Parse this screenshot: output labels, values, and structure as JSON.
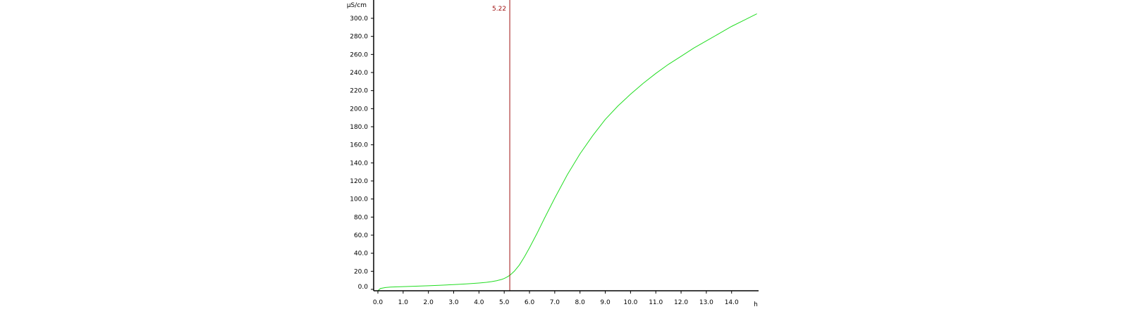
{
  "chart_data": {
    "type": "line",
    "title": "",
    "xlabel": "h",
    "ylabel": "µS/cm",
    "xlim": [
      0,
      15
    ],
    "ylim": [
      0,
      300
    ],
    "grid": false,
    "x_ticks": [
      0.0,
      1.0,
      2.0,
      3.0,
      4.0,
      5.0,
      6.0,
      7.0,
      8.0,
      9.0,
      10.0,
      11.0,
      12.0,
      13.0,
      14.0
    ],
    "x_tick_labels": [
      "0.0",
      "1.0",
      "2.0",
      "3.0",
      "4.0",
      "5.0",
      "6.0",
      "7.0",
      "8.0",
      "9.0",
      "10.0",
      "11.0",
      "12.0",
      "13.0",
      "14.0"
    ],
    "y_ticks": [
      0,
      20,
      40,
      60,
      80,
      100,
      120,
      140,
      160,
      180,
      200,
      220,
      240,
      260,
      280,
      300
    ],
    "y_tick_labels": [
      "0.0",
      "20.0",
      "40.0",
      "60.0",
      "80.0",
      "100.0",
      "120.0",
      "140.0",
      "160.0",
      "180.0",
      "200.0",
      "220.0",
      "240.0",
      "260.0",
      "280.0",
      "300.0"
    ],
    "series": [
      {
        "color": "#22dd22",
        "x": [
          0,
          0.1,
          0.3,
          0.5,
          1.0,
          1.5,
          2.0,
          2.5,
          3.0,
          3.5,
          4.0,
          4.3,
          4.5,
          4.7,
          4.9,
          5.0,
          5.1,
          5.22,
          5.4,
          5.6,
          5.8,
          6.0,
          6.3,
          6.6,
          7.0,
          7.5,
          8.0,
          8.5,
          9.0,
          9.5,
          10.0,
          10.5,
          11.0,
          11.5,
          12.0,
          12.5,
          13.0,
          13.5,
          14.0,
          14.5,
          15.0
        ],
        "y": [
          -2,
          1,
          2,
          2.5,
          3,
          3.5,
          4,
          4.6,
          5.2,
          6,
          7,
          7.8,
          8.6,
          9.6,
          11,
          12,
          13.5,
          15.5,
          20,
          27,
          36,
          46,
          62,
          79,
          101,
          127,
          150,
          170,
          188,
          203,
          216,
          228,
          239,
          249,
          258,
          267,
          275,
          283,
          291,
          298,
          305
        ]
      }
    ],
    "annotations": [
      {
        "type": "vline",
        "x": 5.22,
        "label": "5.22",
        "color": "#a01010"
      }
    ]
  }
}
